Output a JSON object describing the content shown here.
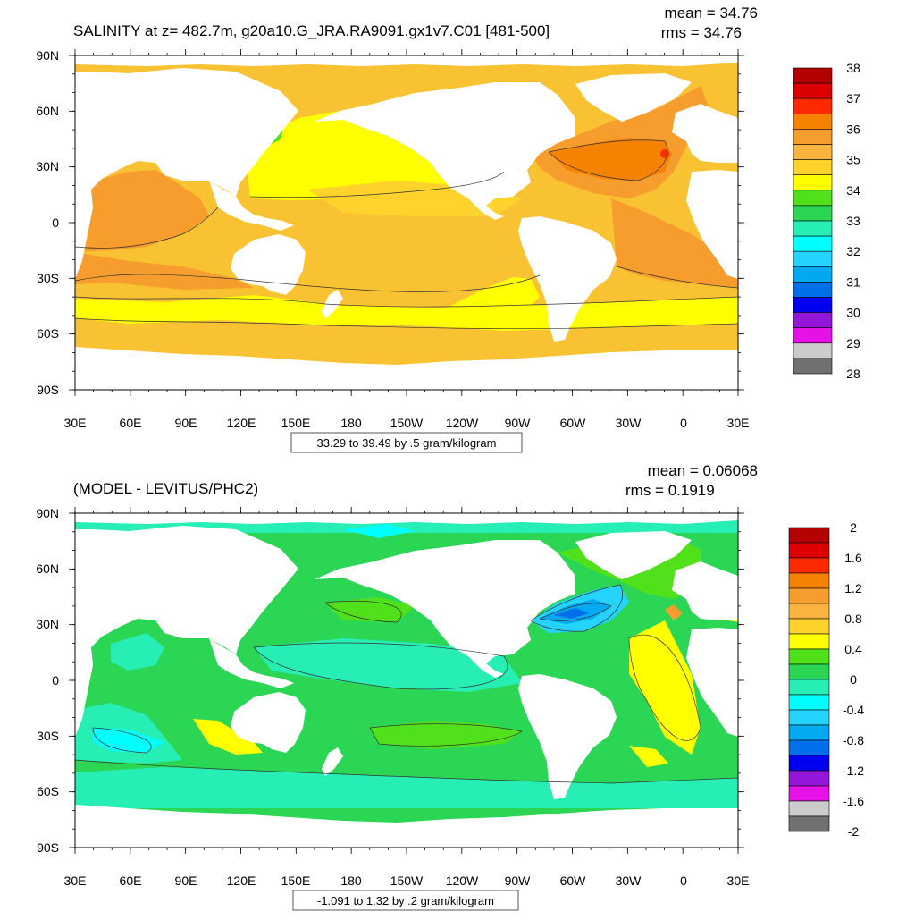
{
  "panels": [
    {
      "title": "SALINITY at z= 482.7m, g20a10.G_JRA.RA9091.gx1v7.C01 [481-500]",
      "stat_mean": "mean = 34.76",
      "stat_rms": "rms = 34.76",
      "info_box": "33.29 to 39.49 by .5 gram/kilogram",
      "lat_labels": [
        "90N",
        "60N",
        "30N",
        "0",
        "30S",
        "60S",
        "90S"
      ],
      "lon_labels": [
        "30E",
        "60E",
        "90E",
        "120E",
        "150E",
        "180",
        "150W",
        "120W",
        "90W",
        "60W",
        "30W",
        "0",
        "30E"
      ],
      "colorbar": {
        "labels": [
          "38",
          "37",
          "36",
          "35",
          "34",
          "33",
          "32",
          "31",
          "30",
          "29",
          "28"
        ],
        "colors": [
          "#b30000",
          "#dd0000",
          "#ff2a00",
          "#f58200",
          "#f79d2e",
          "#f9b43f",
          "#ffd22c",
          "#ffff00",
          "#50e11b",
          "#2bd655",
          "#26eeb5",
          "#00ffff",
          "#24d4ff",
          "#00a9f0",
          "#0070ea",
          "#0000f0",
          "#9416d8",
          "#e611e6",
          "#cccccc",
          "#707070"
        ],
        "label_positions": [
          0,
          2,
          4,
          6,
          8,
          10,
          12,
          14,
          16,
          18,
          20
        ]
      }
    },
    {
      "title": "(MODEL - LEVITUS/PHC2)",
      "stat_mean": "mean = 0.06068",
      "stat_rms": "rms = 0.1919",
      "info_box": "-1.091 to 1.32 by .2 gram/kilogram",
      "lat_labels": [
        "90N",
        "60N",
        "30N",
        "0",
        "30S",
        "60S",
        "90S"
      ],
      "lon_labels": [
        "30E",
        "60E",
        "90E",
        "120E",
        "150E",
        "180",
        "150W",
        "120W",
        "90W",
        "60W",
        "30W",
        "0",
        "30E"
      ],
      "colorbar": {
        "labels": [
          "2",
          "1.6",
          "1.2",
          "0.8",
          "0.4",
          "0",
          "-0.4",
          "-0.8",
          "-1.2",
          "-1.6",
          "-2"
        ],
        "colors": [
          "#b30000",
          "#dd0000",
          "#ff2a00",
          "#f58200",
          "#f79d2e",
          "#f9b43f",
          "#ffd22c",
          "#ffff00",
          "#50e11b",
          "#2bd655",
          "#26eeb5",
          "#00ffff",
          "#24d4ff",
          "#00a9f0",
          "#0070ea",
          "#0000f0",
          "#9416d8",
          "#e611e6",
          "#cccccc",
          "#707070"
        ],
        "label_positions": [
          0,
          2,
          4,
          6,
          8,
          10,
          12,
          14,
          16,
          18,
          20
        ]
      }
    }
  ],
  "chart_data": [
    {
      "type": "heatmap",
      "title": "SALINITY at z= 482.7m, g20a10.G_JRA.RA9091.gx1v7.C01 [481-500]",
      "annotations": [
        "mean = 34.76",
        "rms = 34.76",
        "33.29 to 39.49 by .5 gram/kilogram"
      ],
      "x_ticks": [
        "30E",
        "60E",
        "90E",
        "120E",
        "150E",
        "180",
        "150W",
        "120W",
        "90W",
        "60W",
        "30W",
        "0",
        "30E"
      ],
      "y_ticks": [
        "90N",
        "60N",
        "30N",
        "0",
        "30S",
        "60S",
        "90S"
      ],
      "colorbar_levels": [
        38,
        37,
        36,
        35,
        34,
        33,
        32,
        31,
        30,
        29,
        28
      ],
      "mean": 34.76,
      "rms": 34.76,
      "data_min": 33.29,
      "data_max": 39.49,
      "interval": 0.5,
      "units": "gram/kilogram"
    },
    {
      "type": "heatmap",
      "title": "(MODEL - LEVITUS/PHC2)",
      "annotations": [
        "mean = 0.06068",
        "rms = 0.1919",
        "-1.091 to 1.32 by .2 gram/kilogram"
      ],
      "x_ticks": [
        "30E",
        "60E",
        "90E",
        "120E",
        "150E",
        "180",
        "150W",
        "120W",
        "90W",
        "60W",
        "30W",
        "0",
        "30E"
      ],
      "y_ticks": [
        "90N",
        "60N",
        "30N",
        "0",
        "30S",
        "60S",
        "90S"
      ],
      "colorbar_levels": [
        2,
        1.6,
        1.2,
        0.8,
        0.4,
        0,
        -0.4,
        -0.8,
        -1.2,
        -1.6,
        -2
      ],
      "mean": 0.06068,
      "rms": 0.1919,
      "data_min": -1.091,
      "data_max": 1.32,
      "interval": 0.2,
      "units": "gram/kilogram"
    }
  ]
}
